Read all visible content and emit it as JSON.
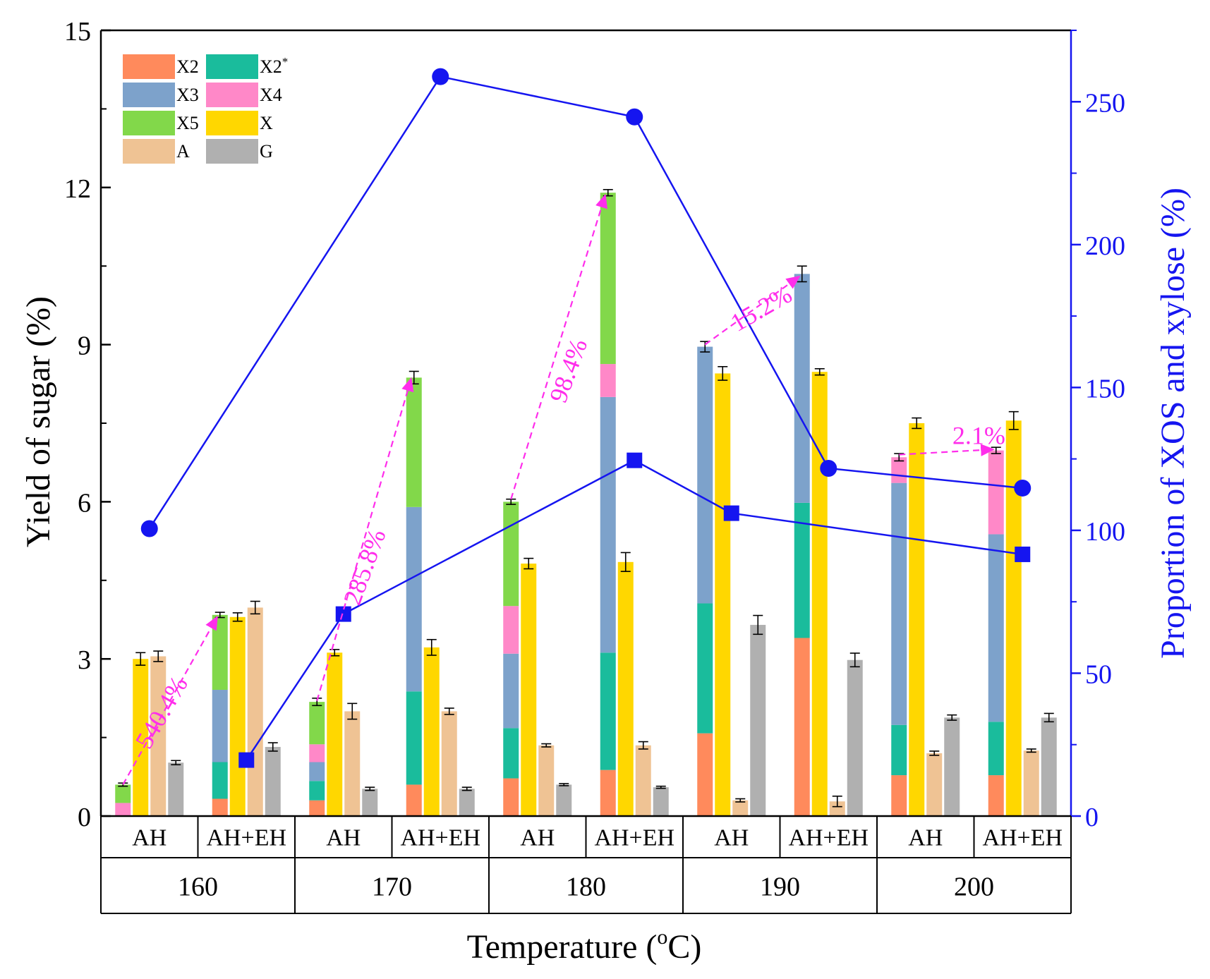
{
  "chart_data": {
    "type": "bar",
    "title": "",
    "xlabel": "Temperature (",
    "xlabel_sup": "o",
    "xlabel_end": "C)",
    "ylabel": "Yield of sugar (%)",
    "y2label": "Proportion of XOS and xylose (%)",
    "ylim": [
      0,
      15
    ],
    "yticks": [
      "0",
      "3",
      "6",
      "9",
      "12",
      "15"
    ],
    "y2lim": [
      0,
      275
    ],
    "y2ticks": [
      "0",
      "50",
      "100",
      "150",
      "200",
      "250"
    ],
    "temperatures": [
      "160",
      "170",
      "180",
      "190",
      "200"
    ],
    "methods": [
      "AH",
      "AH+EH",
      "AH",
      "AH+EH",
      "AH",
      "AH+EH",
      "AH",
      "AH+EH",
      "AH",
      "AH+EH"
    ],
    "legend": [
      {
        "key": "X2",
        "label": "X2",
        "sup": "",
        "color": "#FF8A5C"
      },
      {
        "key": "X2s",
        "label": "X2",
        "sup": "*",
        "color": "#1ABC9C"
      },
      {
        "key": "X3",
        "label": "X3",
        "sup": "",
        "color": "#7DA2CB"
      },
      {
        "key": "X4",
        "label": "X4",
        "sup": "",
        "color": "#FF88C8"
      },
      {
        "key": "X5",
        "label": "X5",
        "sup": "",
        "color": "#82D84A"
      },
      {
        "key": "X",
        "label": "X",
        "sup": "",
        "color": "#FFD700"
      },
      {
        "key": "A",
        "label": "A",
        "sup": "",
        "color": "#EFC394"
      },
      {
        "key": "G",
        "label": "G",
        "sup": "",
        "color": "#B0B0B0"
      }
    ],
    "groups": [
      {
        "temp": "160",
        "method": "AH",
        "xos": {
          "X2": 0,
          "X2s": 0,
          "X3": 0,
          "X4": 0.25,
          "X5": 0.35
        },
        "xos_err": 0.03,
        "X": 3.0,
        "X_err": 0.12,
        "A": 3.05,
        "A_err": 0.1,
        "G": 1.02,
        "G_err": 0.04
      },
      {
        "temp": "160",
        "method": "AH+EH",
        "xos": {
          "X2": 0.33,
          "X2s": 0.7,
          "X3": 1.38,
          "X4": 0,
          "X5": 1.43
        },
        "xos_err": 0.05,
        "X": 3.8,
        "X_err": 0.08,
        "A": 3.98,
        "A_err": 0.12,
        "G": 1.32,
        "G_err": 0.08
      },
      {
        "temp": "170",
        "method": "AH",
        "xos": {
          "X2": 0.3,
          "X2s": 0.37,
          "X3": 0.36,
          "X4": 0.34,
          "X5": 0.81
        },
        "xos_err": 0.07,
        "X": 3.12,
        "X_err": 0.06,
        "A": 2.0,
        "A_err": 0.15,
        "G": 0.52,
        "G_err": 0.03
      },
      {
        "temp": "170",
        "method": "AH+EH",
        "xos": {
          "X2": 0.6,
          "X2s": 1.78,
          "X3": 3.52,
          "X4": 0,
          "X5": 2.47
        },
        "xos_err": 0.12,
        "X": 3.22,
        "X_err": 0.15,
        "A": 2.0,
        "A_err": 0.06,
        "G": 0.52,
        "G_err": 0.03
      },
      {
        "temp": "180",
        "method": "AH",
        "xos": {
          "X2": 0.72,
          "X2s": 0.96,
          "X3": 1.42,
          "X4": 0.91,
          "X5": 1.99
        },
        "xos_err": 0.05,
        "X": 4.82,
        "X_err": 0.1,
        "A": 1.35,
        "A_err": 0.03,
        "G": 0.6,
        "G_err": 0.02
      },
      {
        "temp": "180",
        "method": "AH+EH",
        "xos": {
          "X2": 0.88,
          "X2s": 2.24,
          "X3": 4.88,
          "X4": 0.63,
          "X5": 3.27
        },
        "xos_err": 0.06,
        "X": 4.85,
        "X_err": 0.18,
        "A": 1.35,
        "A_err": 0.07,
        "G": 0.55,
        "G_err": 0.02
      },
      {
        "temp": "190",
        "method": "AH",
        "xos": {
          "X2": 1.58,
          "X2s": 2.48,
          "X3": 4.9,
          "X4": 0,
          "X5": 0
        },
        "xos_err": 0.1,
        "X": 8.45,
        "X_err": 0.13,
        "A": 0.3,
        "A_err": 0.03,
        "G": 3.65,
        "G_err": 0.18
      },
      {
        "temp": "190",
        "method": "AH+EH",
        "xos": {
          "X2": 3.4,
          "X2s": 2.58,
          "X3": 4.37,
          "X4": 0,
          "X5": 0
        },
        "xos_err": 0.15,
        "X": 8.48,
        "X_err": 0.06,
        "A": 0.28,
        "A_err": 0.1,
        "G": 2.98,
        "G_err": 0.13
      },
      {
        "temp": "200",
        "method": "AH",
        "xos": {
          "X2": 0.78,
          "X2s": 0.96,
          "X3": 4.62,
          "X4": 0.49,
          "X5": 0
        },
        "xos_err": 0.07,
        "X": 7.5,
        "X_err": 0.1,
        "A": 1.2,
        "A_err": 0.04,
        "G": 1.88,
        "G_err": 0.05
      },
      {
        "temp": "200",
        "method": "AH+EH",
        "xos": {
          "X2": 0.78,
          "X2s": 1.02,
          "X3": 3.58,
          "X4": 1.6,
          "X5": 0
        },
        "xos_err": 0.06,
        "X": 7.55,
        "X_err": 0.17,
        "A": 1.25,
        "A_err": 0.03,
        "G": 1.88,
        "G_err": 0.08
      }
    ],
    "series": [
      {
        "name": "circle-line",
        "marker": "circle",
        "color": "#1515F0",
        "x_group": [
          0,
          3,
          5,
          7,
          9
        ],
        "values": [
          100.6,
          258.8,
          244.7,
          121.7,
          114.8
        ]
      },
      {
        "name": "square-line",
        "marker": "square",
        "color": "#1515F0",
        "x_group": [
          1,
          2,
          5,
          6,
          9
        ],
        "values": [
          19.6,
          70.7,
          124.5,
          106.0,
          91.6
        ]
      }
    ],
    "annotations": [
      {
        "text": "540.4%",
        "from_group": 0,
        "from_y": 0.6,
        "to_group": 1,
        "to_y": 3.8,
        "rotation": -60,
        "text_group": 0.2,
        "text_y": 1.9
      },
      {
        "text": "285.8%",
        "from_group": 2,
        "from_y": 2.2,
        "to_group": 3,
        "to_y": 8.35,
        "rotation": -70,
        "text_group": 2.3,
        "text_y": 4.7
      },
      {
        "text": "98.4%",
        "from_group": 4,
        "from_y": 6.05,
        "to_group": 5,
        "to_y": 11.85,
        "rotation": -70,
        "text_group": 4.4,
        "text_y": 8.45
      },
      {
        "text": "15.2%",
        "from_group": 6,
        "from_y": 9.0,
        "to_group": 7,
        "to_y": 10.3,
        "rotation": -30,
        "text_group": 6.35,
        "text_y": 9.55
      },
      {
        "text": "2.1%",
        "from_group": 8,
        "from_y": 6.9,
        "to_group": 9,
        "to_y": 7.0,
        "rotation": 0,
        "text_group": 8.55,
        "text_y": 7.1
      }
    ],
    "annotation_color": "#FF2DEB",
    "axis_color": "#000000",
    "right_axis_color": "#1515F0"
  }
}
